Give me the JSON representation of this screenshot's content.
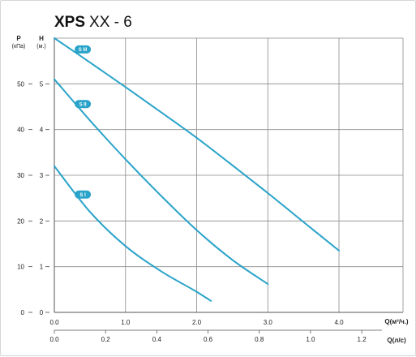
{
  "chart_data": {
    "type": "line",
    "title_main": "XPS",
    "title_rest": "XX - 6",
    "y_left": {
      "label": "P",
      "unit": "(кПа)",
      "ticks": [
        0,
        10,
        20,
        30,
        40,
        50
      ],
      "range": [
        0,
        60
      ]
    },
    "y_right": {
      "label": "H",
      "unit": "(м.)",
      "ticks": [
        0,
        1,
        2,
        3,
        4,
        5
      ],
      "range": [
        0,
        6
      ]
    },
    "x_top": {
      "label": "Q(м³/ч.)",
      "ticks": [
        "0.0",
        "1.0",
        "2.0",
        "3.0",
        "4.0"
      ],
      "range": [
        0,
        4.9
      ]
    },
    "x_bottom": {
      "label": "Q(л/с)",
      "ticks": [
        "0.0",
        "0.2",
        "0.4",
        "0.6",
        "0.8",
        "1.0",
        "1.2"
      ],
      "range": [
        0,
        1.3611
      ]
    },
    "grid": true,
    "series": [
      {
        "name": "S III",
        "color": "#29a3c9",
        "x": [
          0.0,
          0.5,
          1.0,
          1.5,
          2.0,
          2.5,
          3.0,
          3.5,
          4.0
        ],
        "y": [
          6.0,
          5.47,
          4.93,
          4.38,
          3.82,
          3.22,
          2.61,
          1.98,
          1.35
        ]
      },
      {
        "name": "S II",
        "color": "#29a3c9",
        "x": [
          0.0,
          0.5,
          1.0,
          1.5,
          2.0,
          2.5,
          3.0
        ],
        "y": [
          5.1,
          4.2,
          3.35,
          2.55,
          1.8,
          1.15,
          0.62
        ]
      },
      {
        "name": "S I",
        "color": "#29a3c9",
        "x": [
          0.0,
          0.5,
          1.0,
          1.5,
          2.0,
          2.2
        ],
        "y": [
          3.2,
          2.2,
          1.45,
          0.9,
          0.45,
          0.25
        ]
      }
    ]
  }
}
